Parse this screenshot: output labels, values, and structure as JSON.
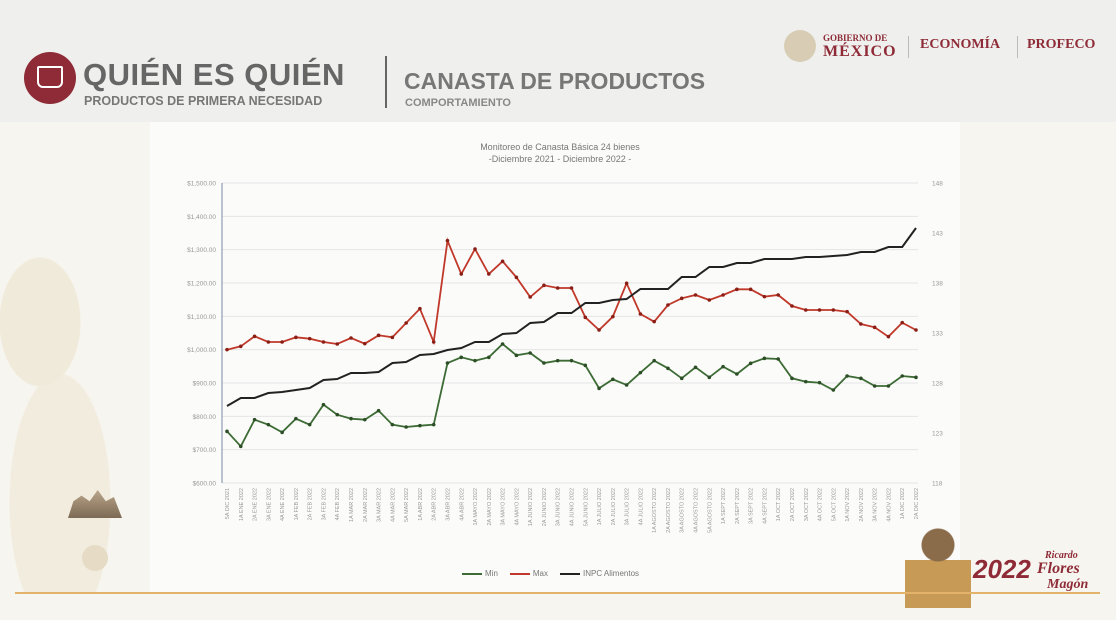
{
  "header": {
    "brand_title": "QUIÉN ES QUIÉN",
    "brand_subtitle": "PRODUCTOS DE PRIMERA NECESIDAD",
    "section_title": "CANASTA DE PRODUCTOS",
    "section_subtitle": "COMPORTAMIENTO",
    "gov_line1": "GOBIERNO DE",
    "gov_line2": "MÉXICO",
    "agency1": "ECONOMÍA",
    "agency2": "PROFECO"
  },
  "badge": {
    "year": "2022",
    "name_line1": "Ricardo",
    "name_line2": "Flores",
    "name_line3": "Magón"
  },
  "colors": {
    "min": "#3d6b35",
    "max": "#c0392b",
    "inpc": "#222222",
    "brand": "#8e2b37"
  },
  "chart_data": {
    "type": "line",
    "title": "Monitoreo de Canasta Básica 24 bienes",
    "subtitle": "-Diciembre 2021 - Diciembre 2022 -",
    "ylim": [
      600,
      1500
    ],
    "yticks": [
      "$1,500.00",
      "$1,400.00",
      "$1,300.00",
      "$1,200.00",
      "$1,100.00",
      "$1,000.00",
      "$900.00",
      "$800.00",
      "$700.00",
      "$600.00"
    ],
    "y2lim": [
      118,
      148
    ],
    "y2ticks": [
      "148",
      "143",
      "138",
      "133",
      "128",
      "123",
      "118"
    ],
    "grid": true,
    "legend_position": "bottom",
    "categories": [
      "5A DIC 2021",
      "1A ENE 2022",
      "2A ENE 2022",
      "3A ENE 2022",
      "4A ENE 2022",
      "1A FEB 2022",
      "2A FEB 2022",
      "3A FEB 2022",
      "4A FEB 2022",
      "1A MAR 2022",
      "2A MAR 2022",
      "3A MAR 2022",
      "4A MAR 2022",
      "5A MAR 2022",
      "1A ABR 2022",
      "2A ABR 2022",
      "3A ABR 2022",
      "4A ABR 2022",
      "1A MAYO 2022",
      "2A MAYO 2022",
      "3A MAYO 2022",
      "4A MAYO 2022",
      "1A JUNIO 2022",
      "2A JUNIO 2022",
      "3A JUNIO 2022",
      "4A JUNIO 2022",
      "5A JUNIO 2022",
      "1A JULIO 2022",
      "2A JULIO 2022",
      "3A JULIO 2022",
      "4A JULIO 2022",
      "1A AGOSTO 2022",
      "2A AGOSTO 2022",
      "3A AGOSTO 2022",
      "4A AGOSTO 2022",
      "5A AGOSTO 2022",
      "1A SEPT 2022",
      "2A SEPT 2022",
      "3A SEPT 2022",
      "4A SEPT 2022",
      "1A OCT 2022",
      "2A OCT 2022",
      "3A OCT 2022",
      "4A OCT 2022",
      "5A OCT 2022",
      "1A NOV 2022",
      "2A NOV 2022",
      "3A NOV 2022",
      "4A NOV 2022",
      "1A DIC 2022",
      "2A DIC 2022"
    ],
    "series": [
      {
        "name": "Min",
        "axis": "left",
        "markers": true,
        "values": [
          755,
          710,
          790,
          775,
          752,
          793,
          775,
          835,
          805,
          793,
          790,
          817,
          775,
          768,
          772,
          775,
          960,
          977,
          967,
          977,
          1017,
          983,
          990,
          960,
          967,
          967,
          953,
          884,
          911,
          894,
          931,
          967,
          944,
          914,
          947,
          917,
          949,
          927,
          959,
          974,
          972,
          914,
          904,
          901,
          879,
          921,
          914,
          891,
          891,
          921,
          917
        ]
      },
      {
        "name": "Max",
        "axis": "left",
        "markers": true,
        "values": [
          1000,
          1010,
          1040,
          1023,
          1023,
          1037,
          1033,
          1023,
          1017,
          1035,
          1018,
          1043,
          1037,
          1080,
          1123,
          1023,
          1327,
          1227,
          1302,
          1227,
          1265,
          1217,
          1158,
          1193,
          1185,
          1185,
          1097,
          1059,
          1099,
          1199,
          1107,
          1084,
          1134,
          1154,
          1164,
          1149,
          1164,
          1181,
          1181,
          1159,
          1164,
          1131,
          1119,
          1119,
          1119,
          1114,
          1077,
          1067,
          1039,
          1081,
          1059
        ]
      },
      {
        "name": "INPC Alimentos",
        "axis": "right",
        "markers": false,
        "values": [
          125.7,
          126.5,
          126.5,
          127.0,
          127.1,
          127.3,
          127.5,
          128.3,
          128.4,
          129.0,
          129.0,
          129.1,
          130.0,
          130.1,
          130.8,
          130.9,
          131.3,
          131.5,
          132.1,
          132.1,
          132.9,
          133.0,
          134.0,
          134.1,
          135.0,
          135.0,
          136.0,
          136.0,
          136.3,
          136.4,
          137.4,
          137.4,
          137.4,
          138.6,
          138.6,
          139.6,
          139.6,
          140.0,
          140.0,
          140.4,
          140.4,
          140.4,
          140.6,
          140.6,
          140.7,
          140.8,
          141.1,
          141.1,
          141.6,
          141.6,
          143.5
        ]
      }
    ]
  }
}
